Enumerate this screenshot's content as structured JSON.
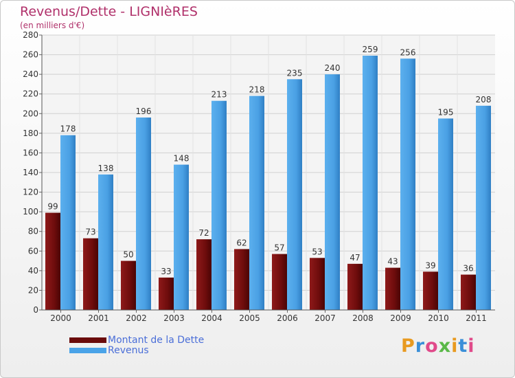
{
  "header": {
    "title": "Revenus/Dette - LIGNIèRES",
    "subtitle": "(en milliers d'€)"
  },
  "chart_data": {
    "type": "bar",
    "categories": [
      "2000",
      "2001",
      "2002",
      "2003",
      "2004",
      "2005",
      "2006",
      "2007",
      "2008",
      "2009",
      "2010",
      "2011"
    ],
    "series": [
      {
        "name": "Montant de la Dette",
        "color": "#7a1010",
        "values": [
          99,
          73,
          50,
          33,
          72,
          62,
          57,
          53,
          47,
          43,
          39,
          36
        ]
      },
      {
        "name": "Revenus",
        "color": "#4aa3e8",
        "values": [
          178,
          138,
          196,
          148,
          213,
          218,
          235,
          240,
          259,
          256,
          195,
          208
        ]
      }
    ],
    "title": "Revenus/Dette - LIGNIèRES",
    "ylabel": "(en milliers d'€)",
    "ylim": [
      0,
      280
    ],
    "yticks": [
      0,
      20,
      40,
      60,
      80,
      100,
      120,
      140,
      160,
      180,
      200,
      220,
      240,
      260,
      280
    ],
    "grid": true,
    "legend_position": "bottom-left"
  },
  "legend": {
    "items": [
      {
        "label": "Montant de la Dette",
        "color": "#6a0a0a"
      },
      {
        "label": "Revenus",
        "color": "#4aa3e8"
      }
    ]
  },
  "logo": {
    "text": "Proxiti"
  }
}
